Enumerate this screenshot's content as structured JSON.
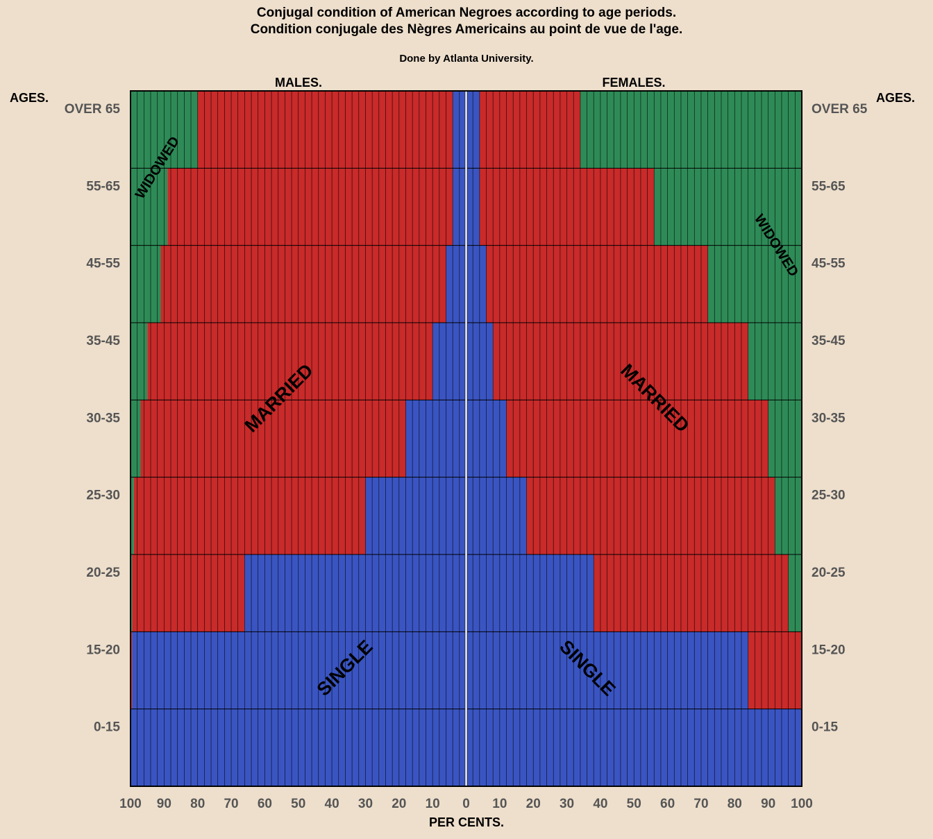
{
  "title": "Conjugal condition of American Negroes according to age periods.",
  "subtitle": "Condition conjugale des Nègres Americains au point de vue de l'age.",
  "credit": "Done by Atlanta University.",
  "headers": {
    "males": "MALES.",
    "females": "FEMALES.",
    "ages_left": "AGES.",
    "ages_right": "AGES."
  },
  "xlabel": "PER CENTS.",
  "segment_labels": {
    "widowed_male": "WIDOWED",
    "widowed_female": "WIDOWED",
    "married_male": "MARRIED",
    "married_female": "MARRIED",
    "single_male": "SINGLE",
    "single_female": "SINGLE"
  },
  "colors": {
    "single": "#3A55C2",
    "married": "#C92A2A",
    "widowed": "#2E8B57",
    "background": "#EEDFCC",
    "grid": "#000000"
  },
  "chart_data": {
    "type": "bar",
    "orientation": "horizontal-stacked-mirrored",
    "xlim": [
      -100,
      100
    ],
    "x_ticks": [
      100,
      90,
      80,
      70,
      60,
      50,
      40,
      30,
      20,
      10,
      0,
      10,
      20,
      30,
      40,
      50,
      60,
      70,
      80,
      90,
      100
    ],
    "categories": [
      "OVER 65",
      "55-65",
      "45-55",
      "35-45",
      "30-35",
      "25-30",
      "20-25",
      "15-20",
      "0-15"
    ],
    "males": {
      "single": [
        4,
        4,
        6,
        10,
        18,
        30,
        66,
        99.5,
        100
      ],
      "married": [
        76,
        85,
        85,
        85,
        79,
        69,
        33.5,
        0.5,
        0
      ],
      "widowed": [
        20,
        11,
        9,
        5,
        3,
        1,
        0.5,
        0,
        0
      ]
    },
    "females": {
      "single": [
        4,
        4,
        6,
        8,
        12,
        18,
        38,
        84,
        100
      ],
      "married": [
        30,
        52,
        66,
        76,
        78,
        74,
        58,
        16,
        0
      ],
      "widowed": [
        66,
        44,
        28,
        16,
        10,
        8,
        4,
        0,
        0
      ]
    }
  }
}
